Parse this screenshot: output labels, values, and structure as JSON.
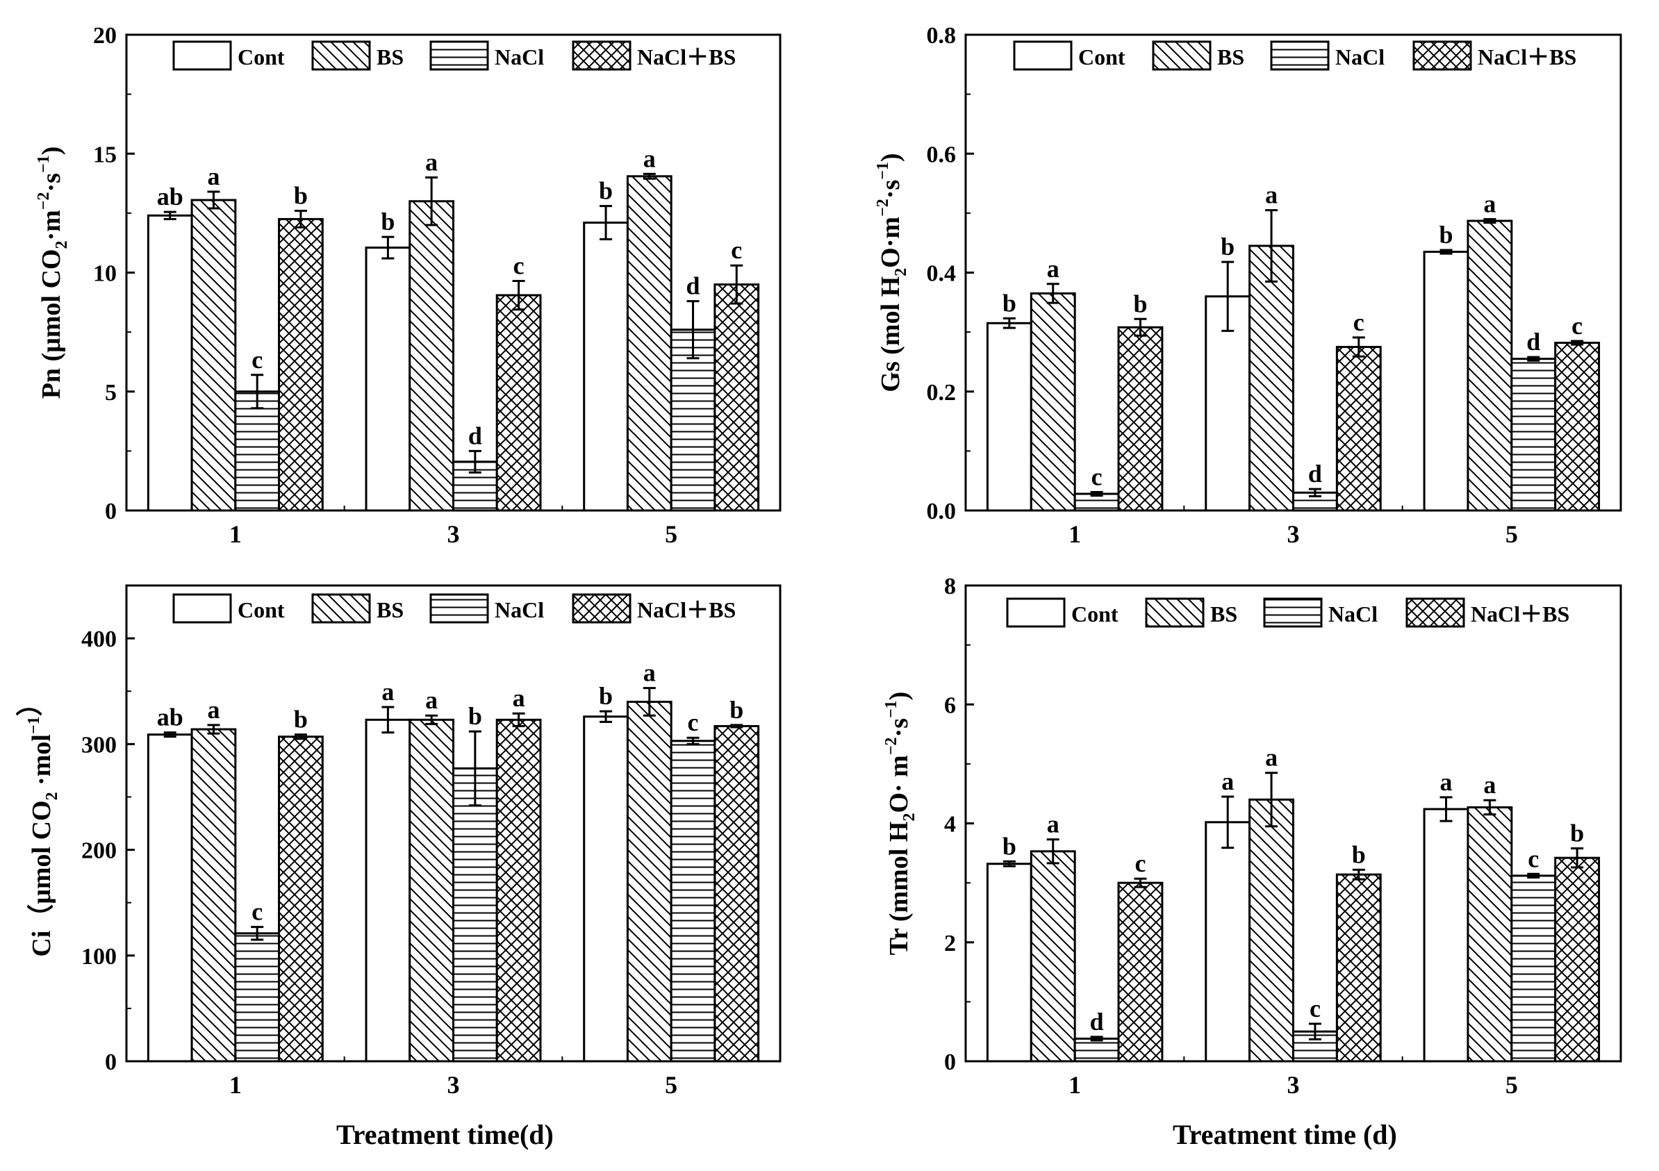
{
  "x_axis_titles": [
    "Treatment time(d)",
    "Treatment time (d)"
  ],
  "chart_data": [
    {
      "type": "bar",
      "id": "pn",
      "ylabel": "Pn (μmol CO₂·m⁻²·s⁻¹)",
      "ylabel_parts": {
        "pre": "Pn (μmol CO",
        "sub": "2",
        "mid1": "·m",
        "sup1": "−2",
        "mid2": "·s",
        "sup2": "−1",
        "post": ")"
      },
      "ylim": [
        0,
        20
      ],
      "yticks": [
        "0",
        "5",
        "10",
        "15",
        "20"
      ],
      "ytick_values": [
        0,
        5,
        10,
        15,
        20
      ],
      "categories": [
        "1",
        "3",
        "5"
      ],
      "legend": [
        "Cont",
        "BS",
        "NaCl",
        "NaCl＋BS"
      ],
      "series": [
        {
          "name": "Cont",
          "values": [
            12.4,
            11.05,
            12.1
          ],
          "errors": [
            0.15,
            0.45,
            0.7
          ],
          "letters": [
            "ab",
            "b",
            "b"
          ]
        },
        {
          "name": "BS",
          "values": [
            13.05,
            13.0,
            14.05
          ],
          "errors": [
            0.35,
            1.0,
            0.1
          ],
          "letters": [
            "a",
            "a",
            "a"
          ]
        },
        {
          "name": "NaCl",
          "values": [
            5.0,
            2.05,
            7.6
          ],
          "errors": [
            0.7,
            0.45,
            1.2
          ],
          "letters": [
            "c",
            "d",
            "d"
          ]
        },
        {
          "name": "NaCl＋BS",
          "values": [
            12.25,
            9.05,
            9.5
          ],
          "errors": [
            0.35,
            0.6,
            0.8
          ],
          "letters": [
            "b",
            "c",
            "c"
          ]
        }
      ]
    },
    {
      "type": "bar",
      "id": "gs",
      "ylabel": "Gs (mol H₂O·m⁻²·s⁻¹)",
      "ylabel_parts": {
        "pre": "Gs (mol H",
        "sub": "2",
        "mid1": "O·m",
        "sup1": "−2",
        "mid2": "·s",
        "sup2": "−1",
        "post": ")"
      },
      "ylim": [
        0,
        0.8
      ],
      "yticks": [
        "0.0",
        "0.2",
        "0.4",
        "0.6",
        "0.8"
      ],
      "ytick_values": [
        0,
        0.2,
        0.4,
        0.6,
        0.8
      ],
      "categories": [
        "1",
        "3",
        "5"
      ],
      "legend": [
        "Cont",
        "BS",
        "NaCl",
        "NaCl＋BS"
      ],
      "series": [
        {
          "name": "Cont",
          "values": [
            0.315,
            0.36,
            0.435
          ],
          "errors": [
            0.008,
            0.058,
            0.003
          ],
          "letters": [
            "b",
            "b",
            "b"
          ]
        },
        {
          "name": "BS",
          "values": [
            0.365,
            0.445,
            0.487
          ],
          "errors": [
            0.016,
            0.06,
            0.003
          ],
          "letters": [
            "a",
            "a",
            "a"
          ]
        },
        {
          "name": "NaCl",
          "values": [
            0.028,
            0.03,
            0.255
          ],
          "errors": [
            0.003,
            0.006,
            0.003
          ],
          "letters": [
            "c",
            "d",
            "d"
          ]
        },
        {
          "name": "NaCl＋BS",
          "values": [
            0.308,
            0.275,
            0.282
          ],
          "errors": [
            0.014,
            0.016,
            0.003
          ],
          "letters": [
            "b",
            "c",
            "c"
          ]
        }
      ]
    },
    {
      "type": "bar",
      "id": "ci",
      "ylabel": "Ci（μmol CO₂ ·mol⁻¹）",
      "ylabel_parts": {
        "pre": "Ci（μmol CO",
        "sub": "2",
        "mid1": " ·mol",
        "sup1": "−1",
        "mid2": "",
        "sup2": "",
        "post": "）"
      },
      "ylim": [
        0,
        450
      ],
      "yticks": [
        "0",
        "100",
        "200",
        "300",
        "400"
      ],
      "ytick_values": [
        0,
        100,
        200,
        300,
        400
      ],
      "categories": [
        "1",
        "3",
        "5"
      ],
      "legend": [
        "Cont",
        "BS",
        "NaCl",
        "NaCl＋BS"
      ],
      "series": [
        {
          "name": "Cont",
          "values": [
            309,
            323,
            326
          ],
          "errors": [
            2,
            12,
            5
          ],
          "letters": [
            "ab",
            "a",
            "b"
          ]
        },
        {
          "name": "BS",
          "values": [
            314,
            323,
            340
          ],
          "errors": [
            4,
            4,
            13
          ],
          "letters": [
            "a",
            "a",
            "a"
          ]
        },
        {
          "name": "NaCl",
          "values": [
            121,
            277,
            303
          ],
          "errors": [
            6,
            35,
            3
          ],
          "letters": [
            "c",
            "b",
            "c"
          ]
        },
        {
          "name": "NaCl＋BS",
          "values": [
            307,
            323,
            317
          ],
          "errors": [
            2,
            6,
            1
          ],
          "letters": [
            "b",
            "a",
            "b"
          ]
        }
      ]
    },
    {
      "type": "bar",
      "id": "tr",
      "ylabel": "Tr (mmol H₂O· m⁻²·s⁻¹)",
      "ylabel_parts": {
        "pre": "Tr (mmol H",
        "sub": "2",
        "mid1": "O· m",
        "sup1": "−2",
        "mid2": "·s",
        "sup2": "−1",
        "post": ")"
      },
      "ylim": [
        0,
        8
      ],
      "yticks": [
        "0",
        "2",
        "4",
        "6",
        "8"
      ],
      "ytick_values": [
        0,
        2,
        4,
        6,
        8
      ],
      "categories": [
        "1",
        "3",
        "5"
      ],
      "legend": [
        "Cont",
        "BS",
        "NaCl",
        "NaCl＋BS"
      ],
      "series": [
        {
          "name": "Cont",
          "values": [
            3.32,
            4.02,
            4.24
          ],
          "errors": [
            0.04,
            0.43,
            0.2
          ],
          "letters": [
            "b",
            "a",
            "a"
          ]
        },
        {
          "name": "BS",
          "values": [
            3.53,
            4.4,
            4.27
          ],
          "errors": [
            0.2,
            0.45,
            0.12
          ],
          "letters": [
            "a",
            "a",
            "a"
          ]
        },
        {
          "name": "NaCl",
          "values": [
            0.38,
            0.5,
            3.12
          ],
          "errors": [
            0.03,
            0.13,
            0.03
          ],
          "letters": [
            "d",
            "c",
            "c"
          ]
        },
        {
          "name": "NaCl＋BS",
          "values": [
            3.0,
            3.14,
            3.42
          ],
          "errors": [
            0.07,
            0.08,
            0.16
          ],
          "letters": [
            "c",
            "b",
            "b"
          ]
        }
      ]
    }
  ]
}
